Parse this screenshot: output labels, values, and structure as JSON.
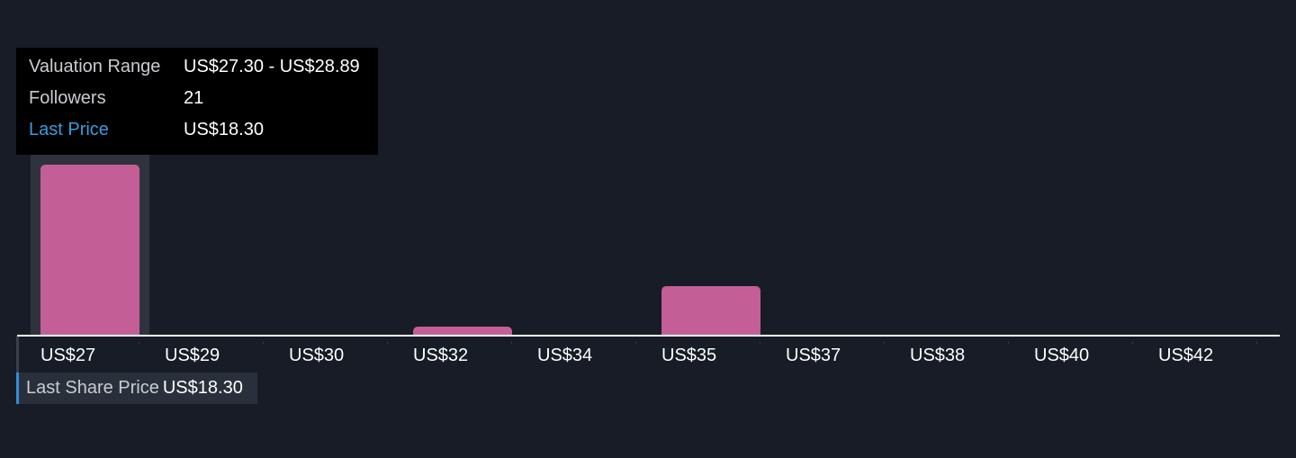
{
  "chart_data": {
    "type": "bar",
    "categories": [
      "US$27",
      "US$29",
      "US$30",
      "US$32",
      "US$34",
      "US$35",
      "US$37",
      "US$38",
      "US$40",
      "US$42"
    ],
    "values": [
      21,
      0,
      0,
      1,
      0,
      6,
      0,
      0,
      0,
      0
    ],
    "ylabel": "",
    "xlabel": "",
    "ylim": [
      0,
      21
    ],
    "grid": false,
    "bar_color": "#c45e96",
    "highlight_color": "#2e333d",
    "highlighted_index": 0
  },
  "tooltip": {
    "rows": [
      {
        "label": "Valuation Range",
        "value": "US$27.30 - US$28.89"
      },
      {
        "label": "Followers",
        "value": "21"
      },
      {
        "label": "Last Price",
        "value": "US$18.30"
      }
    ]
  },
  "last_share_price": {
    "label": "Last Share Price",
    "value": "US$18.30",
    "accent": "#2f8fd8"
  }
}
